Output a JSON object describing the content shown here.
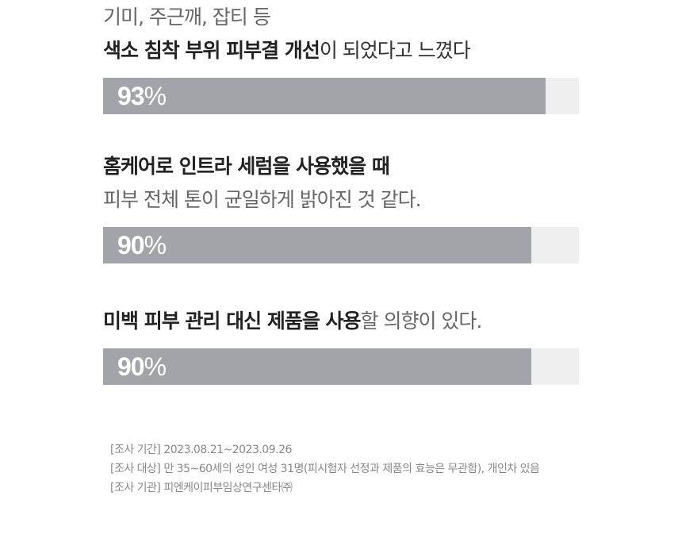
{
  "items": [
    {
      "lines": [
        [
          {
            "t": "기미, 주근깨, 잡티 등",
            "style": "gray"
          }
        ],
        [
          {
            "t": "색소 침착 부위 피부결 개선",
            "style": "b"
          },
          {
            "t": "이 되었다고 느꼈다",
            "style": ""
          }
        ]
      ],
      "percent": 93
    },
    {
      "lines": [
        [
          {
            "t": "홈케어로 인트라 세럼을 사용했을 때",
            "style": "b"
          }
        ],
        [
          {
            "t": "피부 전체 톤이 균일하게 밝아진 것 같다.",
            "style": "gray"
          }
        ]
      ],
      "percent": 90
    },
    {
      "lines": [
        [
          {
            "t": "미백 피부 관리 대신 제품을 사용",
            "style": "b"
          },
          {
            "t": "할 의향이 있다.",
            "style": "gray"
          }
        ]
      ],
      "percent": 90
    }
  ],
  "percent_sign": "%",
  "colors": {
    "fill": "#a2a4aa",
    "track": "#efefef"
  },
  "notes": [
    "[조사 기간] 2023.08.21~2023.09.26",
    "[조사 대상] 만 35~60세의 성인 여성 31명(피시험자 선정과 제품의 효능은 무관함), 개인차 있음",
    "[조사 기관] 피엔케이피부임상연구센타㈜"
  ]
}
